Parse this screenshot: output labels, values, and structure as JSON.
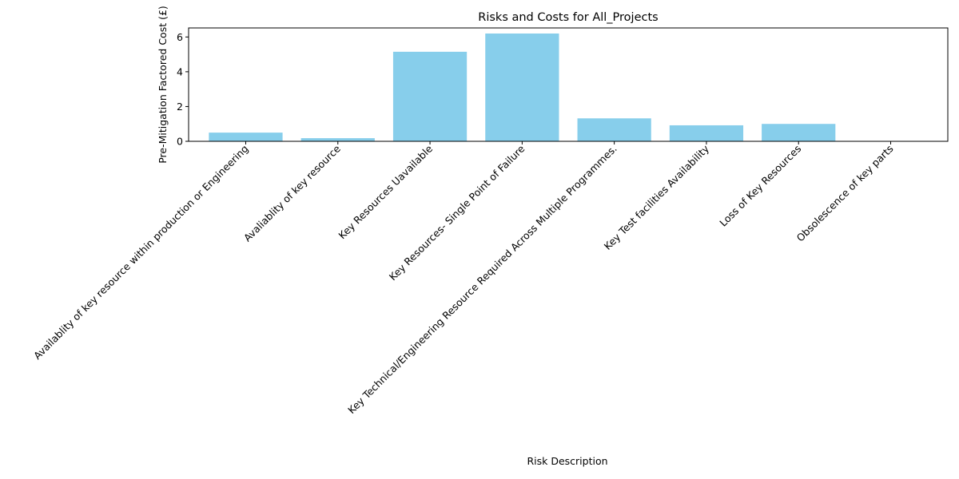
{
  "chart_data": {
    "type": "bar",
    "title": "Risks and Costs for All_Projects",
    "xlabel": "Risk Description",
    "ylabel": "Pre-Mitigation Factored Cost (£)",
    "categories": [
      "Availablity of key resource within production or Engineering",
      "Avaliablity of key resource",
      "Key Resources Uavailable",
      "Key Resources-  Single Point of Failure",
      "Key Technical/Engineering Resource Required Across Multiple Programmes.",
      "Key Test facilities Availability",
      "Loss of Key Resources",
      "Obsolescence of key parts"
    ],
    "values": [
      0.5,
      0.18,
      5.15,
      6.2,
      1.32,
      0.92,
      1.0,
      0.0
    ],
    "ylim": [
      0,
      6.52
    ],
    "yticks": [
      0,
      2,
      4,
      6
    ],
    "bar_color": "#87ceeb",
    "grid": false,
    "legend": "none"
  }
}
